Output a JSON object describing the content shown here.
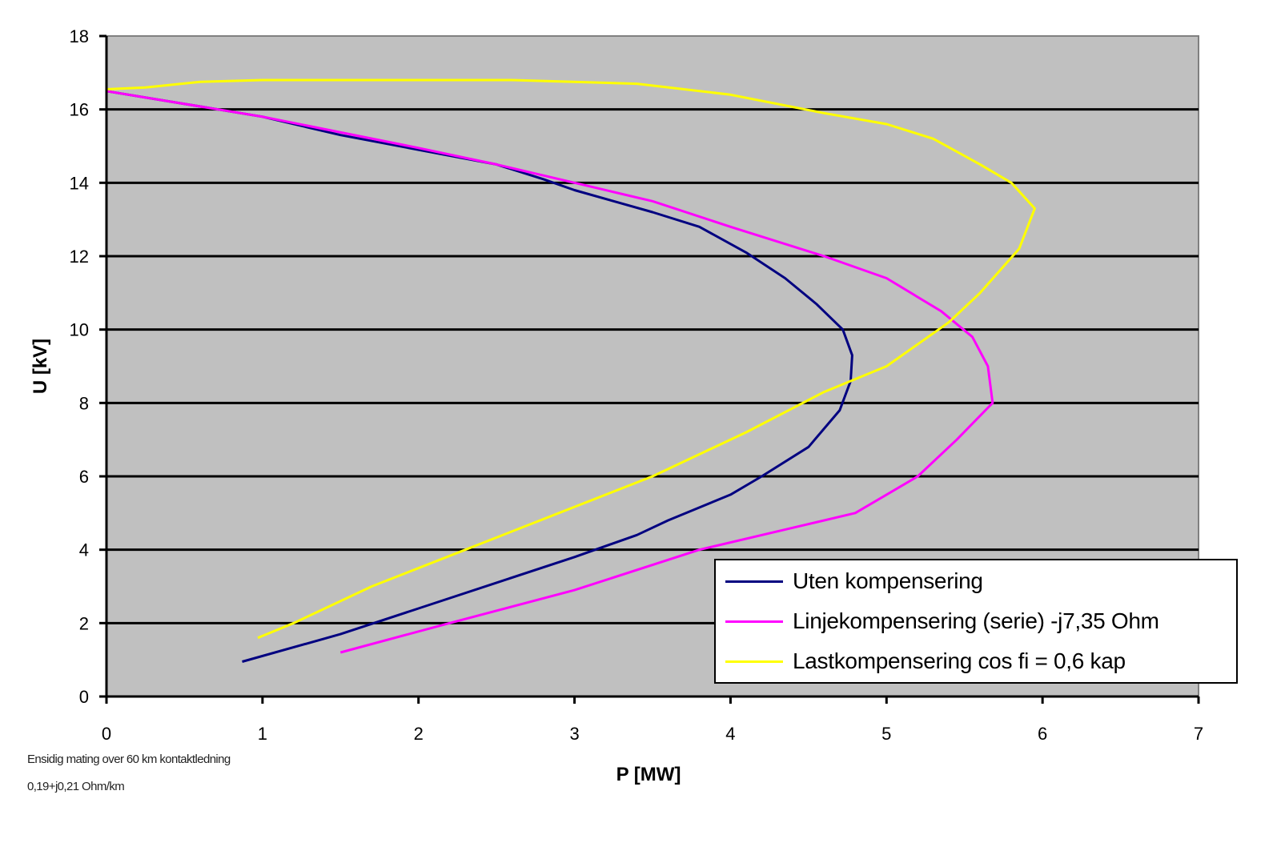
{
  "chart_data": {
    "type": "line",
    "title": "",
    "xlabel": "P  [MW]",
    "ylabel": "U [kV]",
    "xlim": [
      0,
      7
    ],
    "ylim": [
      0,
      18
    ],
    "x_ticks": [
      0,
      1,
      2,
      3,
      4,
      5,
      6,
      7
    ],
    "y_ticks": [
      0,
      2,
      4,
      6,
      8,
      10,
      12,
      14,
      16,
      18
    ],
    "grid": {
      "horizontal": true,
      "vertical": false
    },
    "plot_background": "#c0c0c0",
    "legend_position": "lower right",
    "series": [
      {
        "name": "Uten kompensering",
        "color": "#000080",
        "points": [
          [
            0,
            16.5
          ],
          [
            1.0,
            15.8
          ],
          [
            1.5,
            15.3
          ],
          [
            2.0,
            14.9
          ],
          [
            2.5,
            14.5
          ],
          [
            2.8,
            14.1
          ],
          [
            3.0,
            13.8
          ],
          [
            3.5,
            13.2
          ],
          [
            3.8,
            12.8
          ],
          [
            4.1,
            12.1
          ],
          [
            4.35,
            11.4
          ],
          [
            4.55,
            10.7
          ],
          [
            4.72,
            10.0
          ],
          [
            4.78,
            9.3
          ],
          [
            4.77,
            8.6
          ],
          [
            4.7,
            7.8
          ],
          [
            4.5,
            6.8
          ],
          [
            4.2,
            6.0
          ],
          [
            4.0,
            5.5
          ],
          [
            3.6,
            4.8
          ],
          [
            3.4,
            4.4
          ],
          [
            3.0,
            3.8
          ],
          [
            2.5,
            3.1
          ],
          [
            2.0,
            2.4
          ],
          [
            1.5,
            1.7
          ],
          [
            0.87,
            0.95
          ]
        ]
      },
      {
        "name": "Linjekompensering (serie) -j7,35 Ohm",
        "color": "#ff00ff",
        "points": [
          [
            0,
            16.5
          ],
          [
            1.0,
            15.8
          ],
          [
            2.0,
            14.95
          ],
          [
            2.5,
            14.5
          ],
          [
            3.0,
            14.0
          ],
          [
            3.5,
            13.5
          ],
          [
            4.0,
            12.8
          ],
          [
            4.6,
            12.0
          ],
          [
            5.0,
            11.4
          ],
          [
            5.35,
            10.5
          ],
          [
            5.55,
            9.8
          ],
          [
            5.65,
            9.0
          ],
          [
            5.68,
            8.0
          ],
          [
            5.45,
            7.0
          ],
          [
            5.2,
            6.0
          ],
          [
            5.0,
            5.5
          ],
          [
            4.8,
            5.0
          ],
          [
            4.4,
            4.6
          ],
          [
            3.8,
            4.0
          ],
          [
            3.0,
            2.9
          ],
          [
            2.2,
            2.0
          ],
          [
            1.5,
            1.2
          ]
        ]
      },
      {
        "name": "Lastkompensering cos fi = 0,6 kap",
        "color": "#ffff00",
        "points": [
          [
            0,
            16.55
          ],
          [
            0.25,
            16.6
          ],
          [
            0.6,
            16.75
          ],
          [
            1.0,
            16.8
          ],
          [
            2.0,
            16.8
          ],
          [
            2.6,
            16.8
          ],
          [
            3.4,
            16.7
          ],
          [
            4.0,
            16.4
          ],
          [
            4.6,
            15.9
          ],
          [
            5.0,
            15.6
          ],
          [
            5.3,
            15.2
          ],
          [
            5.6,
            14.5
          ],
          [
            5.8,
            14.0
          ],
          [
            5.95,
            13.3
          ],
          [
            5.85,
            12.2
          ],
          [
            5.6,
            11.0
          ],
          [
            5.4,
            10.2
          ],
          [
            5.0,
            9.0
          ],
          [
            4.6,
            8.3
          ],
          [
            4.1,
            7.2
          ],
          [
            3.5,
            6.0
          ],
          [
            2.9,
            5.0
          ],
          [
            2.3,
            4.0
          ],
          [
            1.7,
            3.0
          ],
          [
            1.2,
            2.0
          ],
          [
            0.97,
            1.6
          ]
        ]
      }
    ],
    "annotations": [
      "Ensidig mating over 60 km kontaktledning",
      "0,19+j0,21 Ohm/km"
    ]
  },
  "legend": {
    "items": [
      {
        "label": "Uten kompensering",
        "color": "#000080"
      },
      {
        "label": "Linjekompensering (serie) -j7,35 Ohm",
        "color": "#ff00ff"
      },
      {
        "label": "Lastkompensering cos fi = 0,6 kap",
        "color": "#ffff00"
      }
    ]
  },
  "footnotes": {
    "line1": "Ensidig mating over 60 km kontaktledning",
    "line2": "0,19+j0,21 Ohm/km"
  }
}
